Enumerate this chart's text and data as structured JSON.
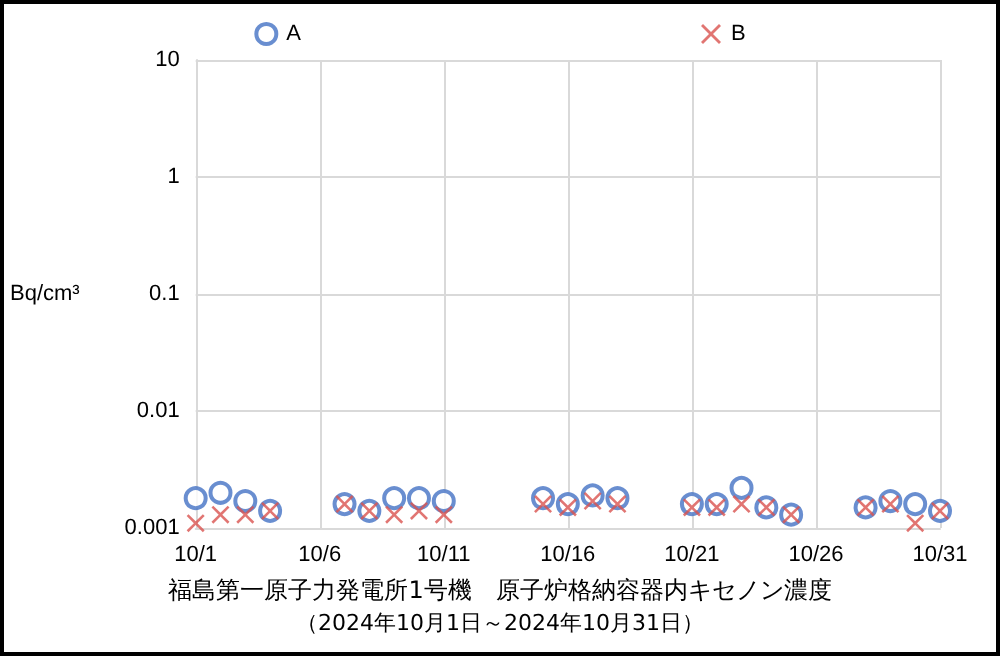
{
  "chart_data": {
    "type": "scatter",
    "title": "福島第一原子力発電所1号機　原子炉格納容器内キセノン濃度",
    "subtitle": "（2024年10月1日～2024年10月31日）",
    "ylabel": "Bq/cm³",
    "x": [
      "2024-10-01",
      "2024-10-02",
      "2024-10-03",
      "2024-10-04",
      "2024-10-07",
      "2024-10-08",
      "2024-10-09",
      "2024-10-10",
      "2024-10-11",
      "2024-10-15",
      "2024-10-16",
      "2024-10-17",
      "2024-10-18",
      "2024-10-21",
      "2024-10-22",
      "2024-10-23",
      "2024-10-24",
      "2024-10-25",
      "2024-10-28",
      "2024-10-29",
      "2024-10-30",
      "2024-10-31"
    ],
    "series": [
      {
        "name": "A",
        "color": "#4472c4",
        "marker": "circle",
        "values": [
          0.0018,
          0.002,
          0.0017,
          0.0014,
          0.0016,
          0.0014,
          0.0018,
          0.0018,
          0.0017,
          0.0018,
          0.0016,
          0.0019,
          0.0018,
          0.0016,
          0.0016,
          0.0022,
          0.0015,
          0.0013,
          0.0015,
          0.0017,
          0.0016,
          0.0014
        ]
      },
      {
        "name": "B",
        "color": "#d9534f",
        "marker": "cross",
        "values": [
          0.0011,
          0.0013,
          0.0013,
          0.0014,
          0.0016,
          0.0014,
          0.0013,
          0.0014,
          0.0013,
          0.0016,
          0.0015,
          0.0017,
          0.0016,
          0.0015,
          0.0015,
          0.0016,
          0.0015,
          0.0013,
          0.0015,
          0.0016,
          0.0011,
          0.0014
        ]
      }
    ],
    "log": "y",
    "xlim": [
      "2024-10-01",
      "2024-10-31"
    ],
    "xticks": [
      {
        "value": "2024-10-01",
        "label": "10/1"
      },
      {
        "value": "2024-10-06",
        "label": "10/6"
      },
      {
        "value": "2024-10-11",
        "label": "10/11"
      },
      {
        "value": "2024-10-16",
        "label": "10/16"
      },
      {
        "value": "2024-10-21",
        "label": "10/21"
      },
      {
        "value": "2024-10-26",
        "label": "10/26"
      },
      {
        "value": "2024-10-31",
        "label": "10/31"
      }
    ],
    "ylim": [
      0.001,
      10
    ],
    "yticks": [
      {
        "value": 0.001,
        "label": "0.001"
      },
      {
        "value": 0.01,
        "label": "0.01"
      },
      {
        "value": 0.1,
        "label": "0.1"
      },
      {
        "value": 1,
        "label": "1"
      },
      {
        "value": 10,
        "label": "10"
      }
    ],
    "grid": true,
    "legend": "top"
  }
}
